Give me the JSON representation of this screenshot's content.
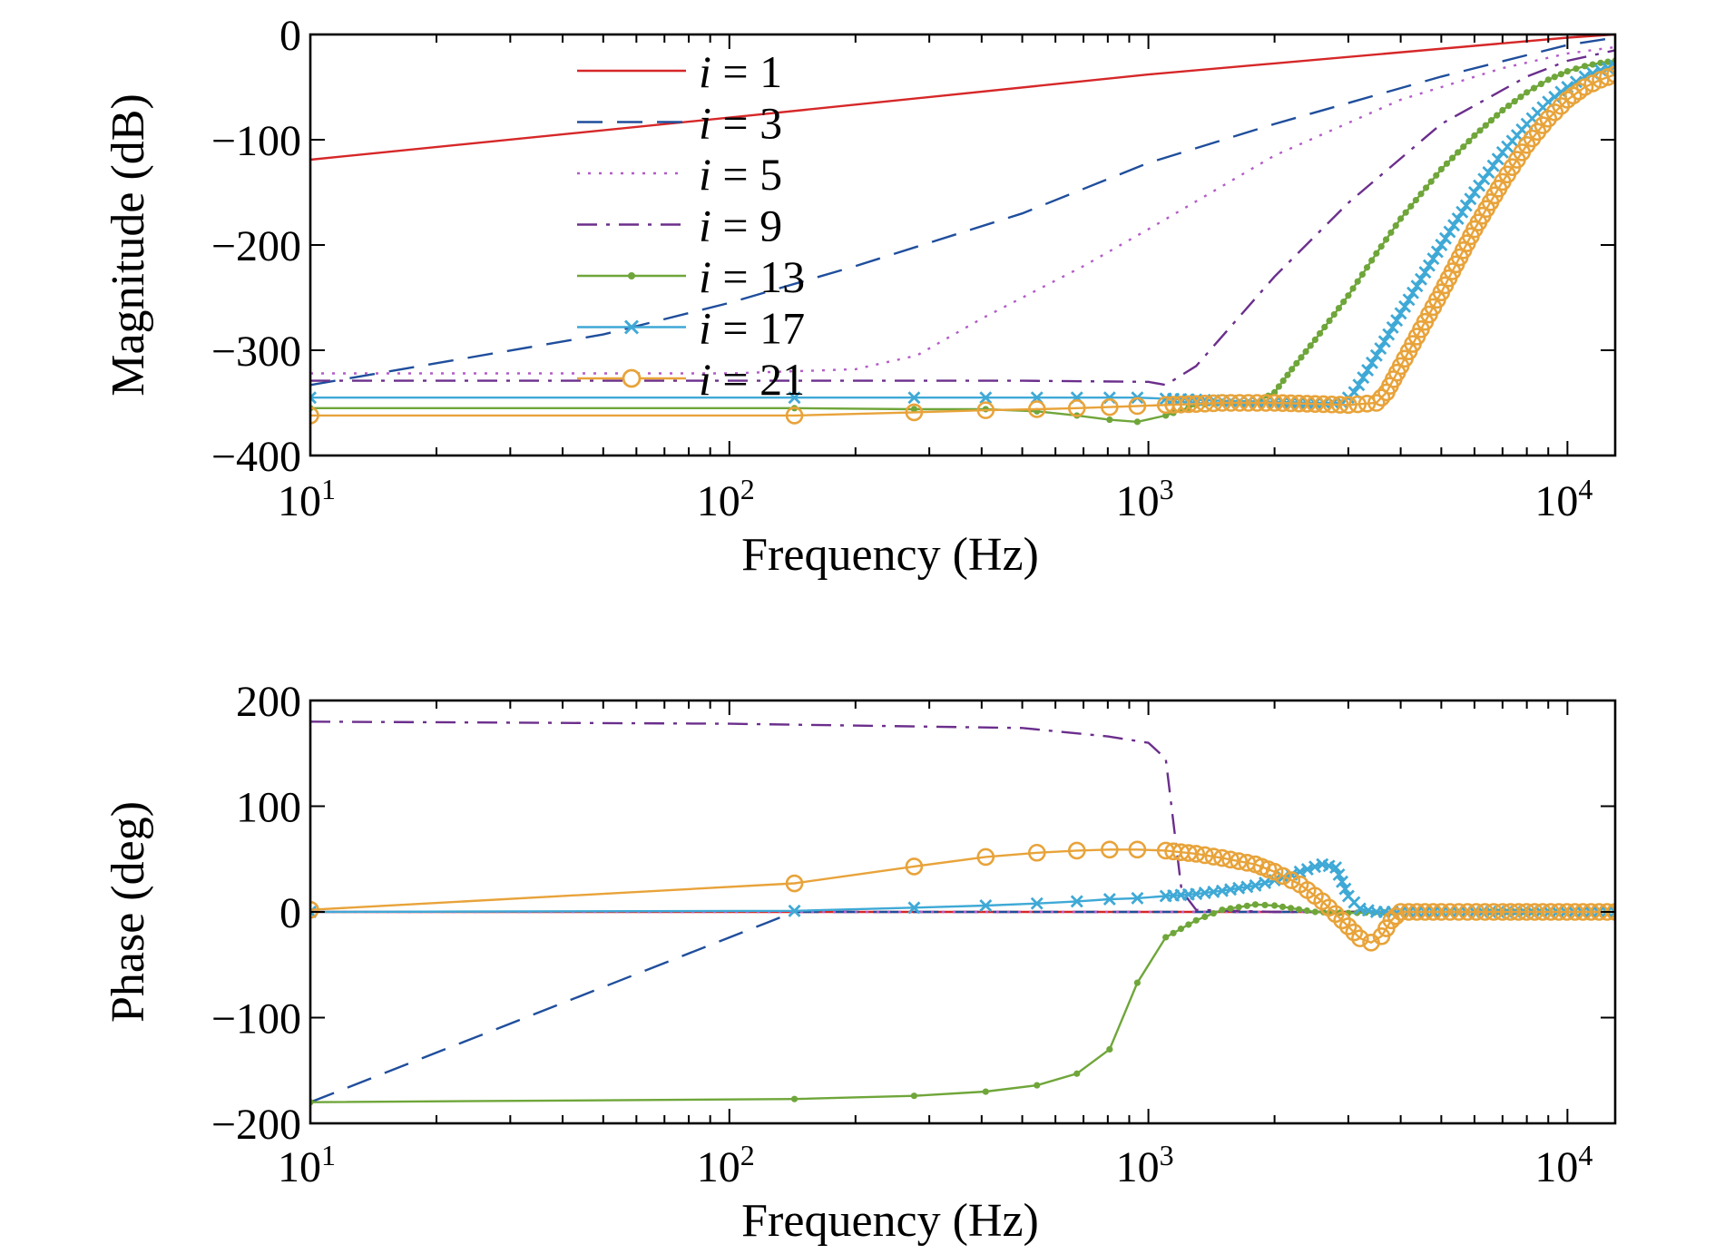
{
  "chart_data": [
    {
      "type": "line",
      "xlabel": "Frequency (Hz)",
      "ylabel": "Magnitude (dB)",
      "xscale": "log",
      "xlim": [
        10,
        13000
      ],
      "ylim": [
        -400,
        0
      ],
      "xticks": [
        {
          "base": "10",
          "exp": "1"
        },
        {
          "base": "10",
          "exp": "2"
        },
        {
          "base": "10",
          "exp": "3"
        },
        {
          "base": "10",
          "exp": "4"
        }
      ],
      "yticks": [
        "0",
        "−100",
        "−200",
        "−300",
        "−400"
      ],
      "grid": false,
      "legend_position": "top-left-center",
      "series": [
        {
          "name": "i = 1",
          "label_var": "i",
          "label_val": "= 1",
          "color": "#d62728",
          "style": "solid",
          "marker": "none",
          "x": [
            10,
            100,
            1000,
            10000,
            13000
          ],
          "y": [
            -119,
            -79,
            -38,
            -3,
            0
          ]
        },
        {
          "name": "i = 3",
          "label_var": "i",
          "label_val": "= 3",
          "color": "#1f4e9c",
          "style": "dashed",
          "marker": "none",
          "x": [
            10,
            50,
            100,
            200,
            500,
            1000,
            2000,
            5000,
            10000,
            13000
          ],
          "y": [
            -333,
            -285,
            -255,
            -220,
            -170,
            -122,
            -85,
            -40,
            -10,
            -3
          ]
        },
        {
          "name": "i = 5",
          "label_var": "i",
          "label_val": "= 5",
          "color": "#b35cc8",
          "style": "dotted",
          "marker": "none",
          "x": [
            10,
            100,
            200,
            280,
            400,
            700,
            1000,
            2000,
            4000,
            7000,
            10000,
            13000
          ],
          "y": [
            -322,
            -322,
            -318,
            -305,
            -270,
            -220,
            -185,
            -115,
            -62,
            -32,
            -18,
            -12
          ]
        },
        {
          "name": "i = 9",
          "label_var": "i",
          "label_val": "= 9",
          "color": "#6b2e8c",
          "style": "dashdot",
          "marker": "none",
          "x": [
            10,
            100,
            500,
            1000,
            1100,
            1300,
            2000,
            3000,
            5000,
            8000,
            10000,
            13000
          ],
          "y": [
            -329,
            -329,
            -329,
            -330,
            -333,
            -315,
            -230,
            -160,
            -85,
            -40,
            -25,
            -15
          ]
        },
        {
          "name": "i = 13",
          "label_var": "i",
          "label_val": "= 13",
          "color": "#6fa63a",
          "style": "solid",
          "marker": "dot",
          "x": [
            10,
            143,
            276,
            409,
            542,
            675,
            808,
            941,
            1100,
            1300,
            1500,
            1800,
            2000,
            2200,
            2500,
            3000,
            3500,
            4000,
            5000,
            6000,
            7000,
            8000,
            9000,
            10000,
            11000,
            12000,
            13000
          ],
          "y": [
            -355,
            -355,
            -356,
            -356,
            -358,
            -362,
            -366,
            -368,
            -362,
            -352,
            -350,
            -350,
            -340,
            -318,
            -290,
            -248,
            -208,
            -175,
            -128,
            -96,
            -72,
            -55,
            -43,
            -35,
            -30,
            -27,
            -25
          ]
        },
        {
          "name": "i = 17",
          "label_var": "i",
          "label_val": "= 17",
          "color": "#3fa9d6",
          "style": "solid",
          "marker": "x",
          "x": [
            10,
            143,
            276,
            409,
            542,
            675,
            808,
            941,
            1100,
            1300,
            1500,
            2000,
            2500,
            2900,
            3100,
            3500,
            4000,
            5000,
            6000,
            7000,
            8000,
            9000,
            10000,
            11000,
            12000,
            13000
          ],
          "y": [
            -345,
            -345,
            -345,
            -345,
            -345,
            -345,
            -345,
            -345,
            -346,
            -347,
            -348,
            -349,
            -350,
            -350,
            -340,
            -305,
            -265,
            -200,
            -150,
            -112,
            -85,
            -64,
            -50,
            -40,
            -34,
            -30
          ]
        },
        {
          "name": "i = 21",
          "label_var": "i",
          "label_val": "= 21",
          "color": "#e8a33a",
          "style": "solid",
          "marker": "circle",
          "x": [
            10,
            143,
            276,
            409,
            542,
            675,
            808,
            941,
            1100,
            1300,
            1500,
            2000,
            2500,
            3000,
            3500,
            3700,
            4000,
            5000,
            6000,
            7000,
            8000,
            9000,
            10000,
            11000,
            12000,
            13000
          ],
          "y": [
            -362,
            -362,
            -359,
            -357,
            -356,
            -355,
            -354,
            -353,
            -352,
            -351,
            -350,
            -350,
            -351,
            -352,
            -350,
            -340,
            -315,
            -245,
            -185,
            -140,
            -105,
            -80,
            -62,
            -50,
            -43,
            -38
          ]
        }
      ]
    },
    {
      "type": "line",
      "xlabel": "Frequency (Hz)",
      "ylabel": "Phase (deg)",
      "xscale": "log",
      "xlim": [
        10,
        13000
      ],
      "ylim": [
        -200,
        200
      ],
      "xticks": [
        {
          "base": "10",
          "exp": "1"
        },
        {
          "base": "10",
          "exp": "2"
        },
        {
          "base": "10",
          "exp": "3"
        },
        {
          "base": "10",
          "exp": "4"
        }
      ],
      "yticks": [
        "200",
        "100",
        "0",
        "−100",
        "−200"
      ],
      "grid": false,
      "series": [
        {
          "name": "i = 1",
          "color": "#d62728",
          "style": "solid",
          "marker": "none",
          "x": [
            10,
            13000
          ],
          "y": [
            0,
            0
          ]
        },
        {
          "name": "i = 3",
          "color": "#1f4e9c",
          "style": "dashed",
          "marker": "none",
          "x": [
            10,
            143,
            13000
          ],
          "y": [
            -180,
            0,
            0
          ]
        },
        {
          "name": "i = 5",
          "color": "#b35cc8",
          "style": "dotted",
          "marker": "none",
          "x": [
            10,
            13000
          ],
          "y": [
            0,
            0
          ]
        },
        {
          "name": "i = 9",
          "color": "#6b2e8c",
          "style": "dashdot",
          "marker": "none",
          "x": [
            10,
            100,
            500,
            800,
            1000,
            1100,
            1200,
            1300,
            2000,
            13000
          ],
          "y": [
            180,
            178,
            174,
            166,
            160,
            145,
            20,
            2,
            0,
            0
          ]
        },
        {
          "name": "i = 13",
          "color": "#6fa63a",
          "style": "solid",
          "marker": "dot",
          "x": [
            10,
            143,
            276,
            409,
            542,
            675,
            808,
            941,
            1100,
            1300,
            1500,
            1800,
            2000,
            2500,
            3000,
            4000,
            6000,
            13000
          ],
          "y": [
            -180,
            -177,
            -174,
            -170,
            -164,
            -153,
            -130,
            -67,
            -24,
            -8,
            2,
            7,
            6,
            0,
            -1,
            0,
            0,
            0
          ]
        },
        {
          "name": "i = 17",
          "color": "#3fa9d6",
          "style": "solid",
          "marker": "x",
          "x": [
            10,
            143,
            276,
            409,
            542,
            675,
            808,
            941,
            1100,
            1300,
            1500,
            1800,
            2000,
            2300,
            2600,
            2800,
            3000,
            3200,
            3500,
            4000,
            6000,
            13000
          ],
          "y": [
            0,
            1,
            4,
            6,
            8,
            10,
            12,
            13,
            15,
            17,
            20,
            25,
            30,
            38,
            45,
            42,
            15,
            3,
            0,
            0,
            0,
            0
          ]
        },
        {
          "name": "i = 21",
          "color": "#e8a33a",
          "style": "solid",
          "marker": "circle",
          "x": [
            10,
            143,
            276,
            409,
            542,
            675,
            808,
            941,
            1100,
            1300,
            1500,
            1800,
            2000,
            2300,
            2600,
            2900,
            3200,
            3400,
            3600,
            3800,
            4000,
            5000,
            7000,
            13000
          ],
          "y": [
            2,
            27,
            43,
            52,
            56,
            58,
            59,
            59,
            58,
            55,
            51,
            45,
            38,
            26,
            10,
            -8,
            -25,
            -29,
            -23,
            -8,
            0,
            0,
            0,
            0
          ]
        }
      ]
    }
  ]
}
